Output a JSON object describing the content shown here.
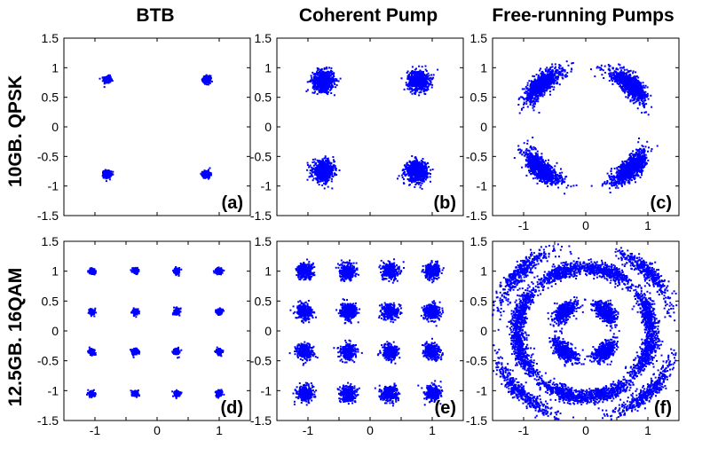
{
  "columns": [
    "BTB",
    "Coherent Pump",
    "Free-running Pumps"
  ],
  "rows": [
    "10GB. QPSK",
    "12.5GB. 16QAM"
  ],
  "colors": {
    "points": "#0000ff",
    "axes": "#000000",
    "background": "#ffffff"
  },
  "chart_data": [
    {
      "id": "a",
      "label": "(a)",
      "type": "scatter",
      "format": "QPSK",
      "constellation": [
        [
          -0.8,
          0.8
        ],
        [
          0.8,
          0.8
        ],
        [
          -0.8,
          -0.8
        ],
        [
          0.8,
          -0.8
        ]
      ],
      "spread": 0.03,
      "phase_noise": 0,
      "points_per_symbol": 260,
      "xlim": [
        -1.5,
        1.5
      ],
      "ylim": [
        -1.5,
        1.5
      ],
      "xticks": [
        -1,
        0,
        1
      ],
      "yticks": [
        -1.5,
        -1,
        -0.5,
        0,
        0.5,
        1,
        1.5
      ],
      "xticklabels_shown": false
    },
    {
      "id": "b",
      "label": "(b)",
      "type": "scatter",
      "format": "QPSK",
      "constellation": [
        [
          -0.75,
          0.78
        ],
        [
          0.78,
          0.78
        ],
        [
          -0.75,
          -0.75
        ],
        [
          0.75,
          -0.75
        ]
      ],
      "spread": 0.085,
      "phase_noise": 0,
      "points_per_symbol": 700,
      "xlim": [
        -1.5,
        1.5
      ],
      "ylim": [
        -1.5,
        1.5
      ],
      "xticks": [
        -1,
        0,
        1
      ],
      "yticks": [
        -1.5,
        -1,
        -0.5,
        0,
        0.5,
        1,
        1.5
      ],
      "xticklabels_shown": false
    },
    {
      "id": "c",
      "label": "(c)",
      "type": "scatter",
      "format": "QPSK",
      "constellation": [
        [
          -0.72,
          0.72
        ],
        [
          0.72,
          0.72
        ],
        [
          -0.72,
          -0.72
        ],
        [
          0.72,
          -0.72
        ]
      ],
      "spread": 0.07,
      "phase_noise": 0.17,
      "points_per_symbol": 900,
      "xlim": [
        -1.5,
        1.5
      ],
      "ylim": [
        -1.5,
        1.5
      ],
      "xticks": [
        -1,
        0,
        1
      ],
      "yticks": [
        -1.5,
        -1,
        -0.5,
        0,
        0.5,
        1,
        1.5
      ],
      "xticklabels_shown": true
    },
    {
      "id": "d",
      "label": "(d)",
      "type": "scatter",
      "format": "16QAM",
      "levels": [
        -1.05,
        -0.35,
        0.32,
        1.0
      ],
      "spread": 0.025,
      "phase_noise": 0,
      "points_per_symbol": 110,
      "xlim": [
        -1.5,
        1.5
      ],
      "ylim": [
        -1.5,
        1.5
      ],
      "xticks": [
        -1,
        -0.5,
        0,
        0.5,
        1
      ],
      "yticks": [
        -1.5,
        -1,
        -0.5,
        0,
        0.5,
        1,
        1.5
      ],
      "xticklabels_shown": true
    },
    {
      "id": "e",
      "label": "(e)",
      "type": "scatter",
      "format": "16QAM",
      "levels": [
        -1.05,
        -0.35,
        0.32,
        1.0
      ],
      "spread": 0.065,
      "phase_noise": 0,
      "points_per_symbol": 320,
      "xlim": [
        -1.5,
        1.5
      ],
      "ylim": [
        -1.5,
        1.5
      ],
      "xticks": [
        -1,
        -0.5,
        0,
        0.5,
        1
      ],
      "yticks": [
        -1.5,
        -1,
        -0.5,
        0,
        0.5,
        1,
        1.5
      ],
      "xticklabels_shown": true
    },
    {
      "id": "f",
      "label": "(f)",
      "type": "scatter",
      "format": "16QAM",
      "levels": [
        -1.05,
        -0.35,
        0.32,
        1.0
      ],
      "spread": 0.06,
      "phase_noise": 0.22,
      "points_per_symbol": 420,
      "xlim": [
        -1.5,
        1.5
      ],
      "ylim": [
        -1.5,
        1.5
      ],
      "xticks": [
        -1,
        -0.5,
        0,
        0.5,
        1
      ],
      "yticks": [
        -1.5,
        -1,
        -0.5,
        0,
        0.5,
        1,
        1.5
      ],
      "xticklabels_shown": true
    }
  ],
  "tick_text": {
    "x_labels": [
      "-1",
      "0",
      "1"
    ],
    "y_labels": [
      "-1.5",
      "-1",
      "-0.5",
      "0",
      "0.5",
      "1",
      "1.5"
    ]
  }
}
